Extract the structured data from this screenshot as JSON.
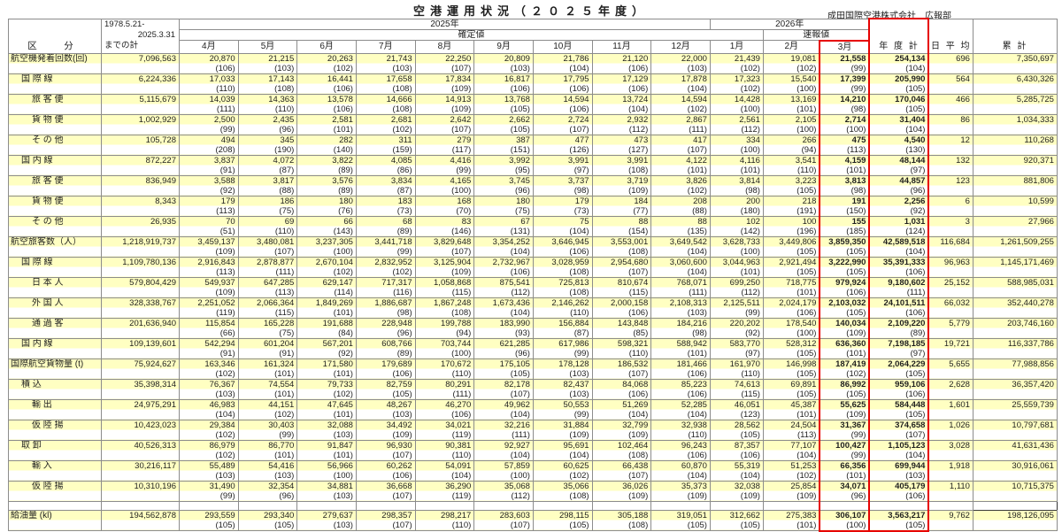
{
  "title": "空港運用状況（２０２５年度）",
  "credit": "成田国際空港株式会社　広報部",
  "colors": {
    "accent_red": "#e60000",
    "row_yellow": "#ffffc2",
    "grid": "#8c8c8c"
  },
  "header": {
    "category": "区　分",
    "total_line1": "1978.5.21-",
    "total_line2": "2025.3.31",
    "total_line3": "までの計",
    "year2025": "2025年",
    "year2026": "2026年",
    "kakutei": "確定値",
    "sokuho": "速報値",
    "months": [
      "4月",
      "5月",
      "6月",
      "7月",
      "8月",
      "9月",
      "10月",
      "11月",
      "12月",
      "1月",
      "2月",
      "3月"
    ],
    "annual": "年 度 計",
    "daily": "日 平 均",
    "cumulative": "累 計"
  },
  "rows": [
    {
      "l": "航空機発着回数(回)",
      "ind": 0,
      "sep": false,
      "t": "7,096,563",
      "m": [
        "20,870",
        "21,215",
        "20,263",
        "21,743",
        "22,250",
        "20,809",
        "21,786",
        "21,120",
        "22,000",
        "21,439",
        "19,081",
        "21,558"
      ],
      "p": [
        "(106)",
        "(103)",
        "(102)",
        "(103)",
        "(107)",
        "(103)",
        "(104)",
        "(106)",
        "(103)",
        "(102)",
        "(102)",
        "(99)"
      ],
      "at": "254,134",
      "ap": "(104)",
      "d": "696",
      "c": "7,350,697"
    },
    {
      "l": "国 際 線",
      "ind": 1,
      "sep": true,
      "t": "6,224,336",
      "m": [
        "17,033",
        "17,143",
        "16,441",
        "17,658",
        "17,834",
        "16,817",
        "17,795",
        "17,129",
        "17,878",
        "17,323",
        "15,540",
        "17,399"
      ],
      "p": [
        "(110)",
        "(108)",
        "(106)",
        "(108)",
        "(109)",
        "(106)",
        "(106)",
        "(106)",
        "(104)",
        "(102)",
        "(100)",
        "(99)"
      ],
      "at": "205,990",
      "ap": "(105)",
      "d": "564",
      "c": "6,430,326"
    },
    {
      "l": "旅 客 便",
      "ind": 2,
      "sep": false,
      "t": "5,115,679",
      "m": [
        "14,039",
        "14,363",
        "13,578",
        "14,666",
        "14,913",
        "13,768",
        "14,594",
        "13,724",
        "14,594",
        "14,428",
        "13,169",
        "14,210"
      ],
      "p": [
        "(111)",
        "(110)",
        "(106)",
        "(108)",
        "(109)",
        "(105)",
        "(106)",
        "(104)",
        "(102)",
        "(100)",
        "(101)",
        "(98)"
      ],
      "at": "170,046",
      "ap": "(105)",
      "d": "466",
      "c": "5,285,725"
    },
    {
      "l": "貨 物 便",
      "ind": 2,
      "sep": false,
      "t": "1,002,929",
      "m": [
        "2,500",
        "2,435",
        "2,581",
        "2,681",
        "2,642",
        "2,662",
        "2,724",
        "2,932",
        "2,867",
        "2,561",
        "2,105",
        "2,714"
      ],
      "p": [
        "(99)",
        "(96)",
        "(101)",
        "(102)",
        "(107)",
        "(105)",
        "(107)",
        "(112)",
        "(111)",
        "(112)",
        "(100)",
        "(100)"
      ],
      "at": "31,404",
      "ap": "(104)",
      "d": "86",
      "c": "1,034,333"
    },
    {
      "l": "そ の 他",
      "ind": 2,
      "sep": false,
      "t": "105,728",
      "m": [
        "494",
        "345",
        "282",
        "311",
        "279",
        "387",
        "477",
        "473",
        "417",
        "334",
        "266",
        "475"
      ],
      "p": [
        "(208)",
        "(190)",
        "(140)",
        "(159)",
        "(117)",
        "(151)",
        "(126)",
        "(127)",
        "(107)",
        "(100)",
        "(94)",
        "(113)"
      ],
      "at": "4,540",
      "ap": "(130)",
      "d": "12",
      "c": "110,268"
    },
    {
      "l": "国 内 線",
      "ind": 1,
      "sep": true,
      "t": "872,227",
      "m": [
        "3,837",
        "4,072",
        "3,822",
        "4,085",
        "4,416",
        "3,992",
        "3,991",
        "3,991",
        "4,122",
        "4,116",
        "3,541",
        "4,159"
      ],
      "p": [
        "(91)",
        "(87)",
        "(89)",
        "(86)",
        "(99)",
        "(95)",
        "(97)",
        "(108)",
        "(101)",
        "(101)",
        "(110)",
        "(101)"
      ],
      "at": "48,144",
      "ap": "(97)",
      "d": "132",
      "c": "920,371"
    },
    {
      "l": "旅 客 便",
      "ind": 2,
      "sep": false,
      "t": "836,949",
      "m": [
        "3,588",
        "3,817",
        "3,576",
        "3,834",
        "4,165",
        "3,745",
        "3,737",
        "3,719",
        "3,826",
        "3,814",
        "3,223",
        "3,813"
      ],
      "p": [
        "(92)",
        "(88)",
        "(89)",
        "(87)",
        "(100)",
        "(96)",
        "(98)",
        "(109)",
        "(102)",
        "(98)",
        "(105)",
        "(98)"
      ],
      "at": "44,857",
      "ap": "(96)",
      "d": "123",
      "c": "881,806"
    },
    {
      "l": "貨 物 便",
      "ind": 2,
      "sep": false,
      "t": "8,343",
      "m": [
        "179",
        "186",
        "180",
        "183",
        "168",
        "180",
        "179",
        "184",
        "208",
        "200",
        "218",
        "191"
      ],
      "p": [
        "(113)",
        "(75)",
        "(76)",
        "(73)",
        "(70)",
        "(75)",
        "(73)",
        "(77)",
        "(88)",
        "(180)",
        "(191)",
        "(150)"
      ],
      "at": "2,256",
      "ap": "(92)",
      "d": "6",
      "c": "10,599"
    },
    {
      "l": "そ の 他",
      "ind": 2,
      "sep": false,
      "t": "26,935",
      "m": [
        "70",
        "69",
        "66",
        "68",
        "83",
        "67",
        "75",
        "88",
        "88",
        "102",
        "100",
        "155"
      ],
      "p": [
        "(51)",
        "(110)",
        "(143)",
        "(89)",
        "(146)",
        "(131)",
        "(104)",
        "(154)",
        "(135)",
        "(142)",
        "(196)",
        "(185)"
      ],
      "at": "1,031",
      "ap": "(124)",
      "d": "3",
      "c": "27,966"
    },
    {
      "l": "航空旅客数（人）",
      "ind": 0,
      "sep": true,
      "t": "1,218,919,737",
      "m": [
        "3,459,137",
        "3,480,081",
        "3,237,305",
        "3,441,718",
        "3,829,648",
        "3,354,252",
        "3,646,945",
        "3,553,001",
        "3,649,542",
        "3,628,733",
        "3,449,806",
        "3,859,350"
      ],
      "p": [
        "(109)",
        "(107)",
        "(100)",
        "(99)",
        "(107)",
        "(104)",
        "(106)",
        "(108)",
        "(104)",
        "(100)",
        "(105)",
        "(105)"
      ],
      "at": "42,589,518",
      "ap": "(104)",
      "d": "116,684",
      "c": "1,261,509,255"
    },
    {
      "l": "国 際 線",
      "ind": 1,
      "sep": true,
      "t": "1,109,780,136",
      "m": [
        "2,916,843",
        "2,878,877",
        "2,670,104",
        "2,832,952",
        "3,125,904",
        "2,732,967",
        "3,028,959",
        "2,954,680",
        "3,060,600",
        "3,044,963",
        "2,921,494",
        "3,222,990"
      ],
      "p": [
        "(113)",
        "(111)",
        "(102)",
        "(102)",
        "(109)",
        "(106)",
        "(108)",
        "(107)",
        "(104)",
        "(101)",
        "(105)",
        "(105)"
      ],
      "at": "35,391,333",
      "ap": "(106)",
      "d": "96,963",
      "c": "1,145,171,469"
    },
    {
      "l": "日 本 人",
      "ind": 2,
      "sep": false,
      "t": "579,804,429",
      "m": [
        "549,937",
        "647,285",
        "629,147",
        "717,317",
        "1,058,868",
        "875,541",
        "725,813",
        "810,674",
        "768,071",
        "699,250",
        "718,775",
        "979,924"
      ],
      "p": [
        "(109)",
        "(113)",
        "(114)",
        "(116)",
        "(115)",
        "(112)",
        "(108)",
        "(115)",
        "(111)",
        "(112)",
        "(101)",
        "(106)"
      ],
      "at": "9,180,602",
      "ap": "(111)",
      "d": "25,152",
      "c": "588,985,031"
    },
    {
      "l": "外 国 人",
      "ind": 2,
      "sep": false,
      "t": "328,338,767",
      "m": [
        "2,251,052",
        "2,066,364",
        "1,849,269",
        "1,886,687",
        "1,867,248",
        "1,673,436",
        "2,146,262",
        "2,000,158",
        "2,108,313",
        "2,125,511",
        "2,024,179",
        "2,103,032"
      ],
      "p": [
        "(119)",
        "(115)",
        "(101)",
        "(98)",
        "(108)",
        "(104)",
        "(110)",
        "(106)",
        "(103)",
        "(99)",
        "(106)",
        "(105)"
      ],
      "at": "24,101,511",
      "ap": "(106)",
      "d": "66,032",
      "c": "352,440,278"
    },
    {
      "l": "通 過 客",
      "ind": 2,
      "sep": false,
      "t": "201,636,940",
      "m": [
        "115,854",
        "165,228",
        "191,688",
        "228,948",
        "199,788",
        "183,990",
        "156,884",
        "143,848",
        "184,216",
        "220,202",
        "178,540",
        "140,034"
      ],
      "p": [
        "(66)",
        "(75)",
        "(84)",
        "(96)",
        "(94)",
        "(93)",
        "(87)",
        "(85)",
        "(98)",
        "(92)",
        "(100)",
        "(109)"
      ],
      "at": "2,109,220",
      "ap": "(89)",
      "d": "5,779",
      "c": "203,746,160"
    },
    {
      "l": "国 内 線",
      "ind": 1,
      "sep": true,
      "t": "109,139,601",
      "m": [
        "542,294",
        "601,204",
        "567,201",
        "608,766",
        "703,744",
        "621,285",
        "617,986",
        "598,321",
        "588,942",
        "583,770",
        "528,312",
        "636,360"
      ],
      "p": [
        "(91)",
        "(91)",
        "(92)",
        "(89)",
        "(100)",
        "(96)",
        "(99)",
        "(110)",
        "(101)",
        "(97)",
        "(105)",
        "(101)"
      ],
      "at": "7,198,185",
      "ap": "(97)",
      "d": "19,721",
      "c": "116,337,786"
    },
    {
      "l": "国際航空貨物量 (t)",
      "ind": 0,
      "sep": true,
      "t": "75,924,627",
      "m": [
        "163,346",
        "161,324",
        "171,580",
        "179,689",
        "170,672",
        "175,105",
        "178,128",
        "186,532",
        "181,466",
        "161,970",
        "146,998",
        "187,419"
      ],
      "p": [
        "(102)",
        "(101)",
        "(101)",
        "(106)",
        "(110)",
        "(105)",
        "(103)",
        "(107)",
        "(106)",
        "(110)",
        "(105)",
        "(102)"
      ],
      "at": "2,064,229",
      "ap": "(105)",
      "d": "5,655",
      "c": "77,988,856"
    },
    {
      "l": "積 込",
      "ind": 1,
      "sep": true,
      "t": "35,398,314",
      "m": [
        "76,367",
        "74,554",
        "79,733",
        "82,759",
        "80,291",
        "82,178",
        "82,437",
        "84,068",
        "85,223",
        "74,613",
        "69,891",
        "86,992"
      ],
      "p": [
        "(103)",
        "(101)",
        "(102)",
        "(105)",
        "(111)",
        "(107)",
        "(103)",
        "(106)",
        "(106)",
        "(115)",
        "(105)",
        "(105)"
      ],
      "at": "959,106",
      "ap": "(106)",
      "d": "2,628",
      "c": "36,357,420"
    },
    {
      "l": "輸 出",
      "ind": 2,
      "sep": false,
      "t": "24,975,291",
      "m": [
        "46,983",
        "44,151",
        "47,645",
        "48,267",
        "46,270",
        "49,962",
        "50,553",
        "51,269",
        "52,285",
        "46,051",
        "45,387",
        "55,625"
      ],
      "p": [
        "(104)",
        "(102)",
        "(101)",
        "(103)",
        "(106)",
        "(104)",
        "(99)",
        "(104)",
        "(104)",
        "(123)",
        "(101)",
        "(109)"
      ],
      "at": "584,448",
      "ap": "(105)",
      "d": "1,601",
      "c": "25,559,739"
    },
    {
      "l": "仮 陸 揚",
      "ind": 2,
      "sep": false,
      "t": "10,423,023",
      "m": [
        "29,384",
        "30,403",
        "32,088",
        "34,492",
        "34,021",
        "32,216",
        "31,884",
        "32,799",
        "32,938",
        "28,562",
        "24,504",
        "31,367"
      ],
      "p": [
        "(102)",
        "(99)",
        "(103)",
        "(109)",
        "(119)",
        "(111)",
        "(109)",
        "(109)",
        "(110)",
        "(105)",
        "(113)",
        "(99)"
      ],
      "at": "374,658",
      "ap": "(107)",
      "d": "1,026",
      "c": "10,797,681"
    },
    {
      "l": "取 卸",
      "ind": 1,
      "sep": true,
      "t": "40,526,313",
      "m": [
        "86,979",
        "86,770",
        "91,847",
        "96,930",
        "90,381",
        "92,927",
        "95,691",
        "102,464",
        "96,243",
        "87,357",
        "77,107",
        "100,427"
      ],
      "p": [
        "(102)",
        "(101)",
        "(101)",
        "(107)",
        "(110)",
        "(104)",
        "(104)",
        "(108)",
        "(106)",
        "(106)",
        "(104)",
        "(99)"
      ],
      "at": "1,105,123",
      "ap": "(104)",
      "d": "3,028",
      "c": "41,631,436"
    },
    {
      "l": "輸 入",
      "ind": 2,
      "sep": false,
      "t": "30,216,117",
      "m": [
        "55,489",
        "54,416",
        "56,966",
        "60,262",
        "54,091",
        "57,859",
        "60,625",
        "66,438",
        "60,870",
        "55,319",
        "51,253",
        "66,356"
      ],
      "p": [
        "(103)",
        "(103)",
        "(100)",
        "(106)",
        "(104)",
        "(100)",
        "(102)",
        "(107)",
        "(104)",
        "(104)",
        "(102)",
        "(101)"
      ],
      "at": "699,944",
      "ap": "(103)",
      "d": "1,918",
      "c": "30,916,061"
    },
    {
      "l": "仮 陸 揚",
      "ind": 2,
      "sep": false,
      "t": "10,310,196",
      "m": [
        "31,490",
        "32,354",
        "34,881",
        "36,668",
        "36,290",
        "35,068",
        "35,066",
        "36,026",
        "35,373",
        "32,038",
        "25,854",
        "34,071"
      ],
      "p": [
        "(99)",
        "(96)",
        "(103)",
        "(107)",
        "(119)",
        "(112)",
        "(108)",
        "(109)",
        "(109)",
        "(109)",
        "(109)",
        "(96)"
      ],
      "at": "405,179",
      "ap": "(106)",
      "d": "1,110",
      "c": "10,715,375"
    },
    {
      "l": "給油量 (kl)",
      "ind": 0,
      "sep": true,
      "gap": true,
      "t": "194,562,878",
      "m": [
        "293,559",
        "293,340",
        "279,637",
        "298,357",
        "298,217",
        "283,603",
        "298,115",
        "305,188",
        "319,051",
        "312,662",
        "275,383",
        "306,107"
      ],
      "p": [
        "(105)",
        "(105)",
        "(103)",
        "(107)",
        "(110)",
        "(107)",
        "(105)",
        "(108)",
        "(105)",
        "(105)",
        "(101)",
        "(100)"
      ],
      "at": "3,563,217",
      "ap": "(105)",
      "d": "9,762",
      "c": "198,126,095"
    }
  ]
}
